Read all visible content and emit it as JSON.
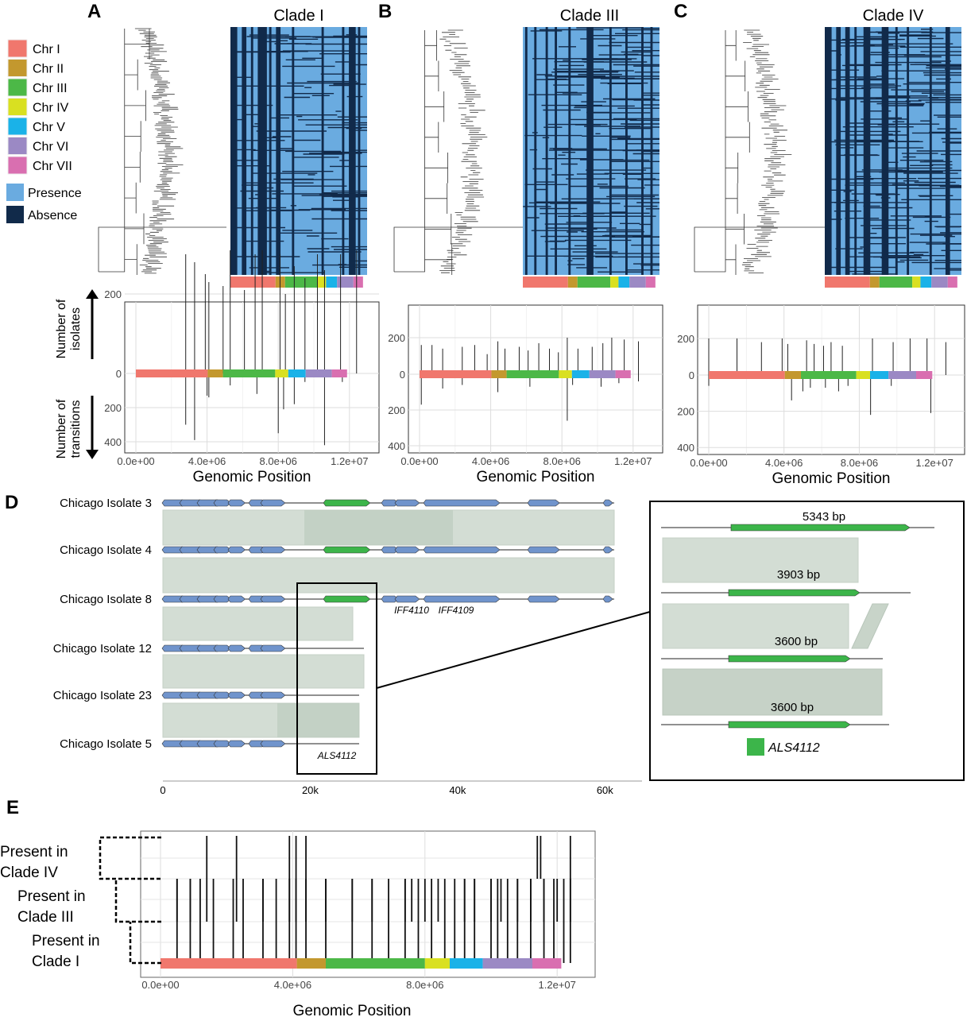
{
  "panel_letters": {
    "a": "A",
    "b": "B",
    "c": "C",
    "d": "D",
    "e": "E"
  },
  "legend": {
    "chromosomes": [
      {
        "label": "Chr I",
        "color": "#f0776d"
      },
      {
        "label": "Chr II",
        "color": "#c3982e"
      },
      {
        "label": "Chr III",
        "color": "#4cb847"
      },
      {
        "label": "Chr IV",
        "color": "#d9e021"
      },
      {
        "label": "Chr V",
        "color": "#1ab2e8"
      },
      {
        "label": "Chr VI",
        "color": "#9b89c4"
      },
      {
        "label": "Chr VII",
        "color": "#d96fb0"
      }
    ],
    "presence": {
      "label": "Presence",
      "color": "#6aabe0"
    },
    "absence": {
      "label": "Absence",
      "color": "#112a4a"
    }
  },
  "heatmaps": [
    {
      "title": "Clade I"
    },
    {
      "title": "Clade III"
    },
    {
      "title": "Clade IV"
    }
  ],
  "side_labels": {
    "isolates": "Number of isolates",
    "transitions": "Number of transitions"
  },
  "chart_data": [
    {
      "type": "bar",
      "panel": "A",
      "xlabel": "Genomic Position",
      "xlim": [
        0,
        12500000
      ],
      "xticks": [
        "0.0e+00",
        "4.0e+06",
        "8.0e+06",
        "1.2e+07"
      ],
      "yticks_up": [
        "200",
        "0"
      ],
      "yticks_down": [
        "200",
        "400"
      ],
      "ylim": [
        -400,
        330
      ],
      "up": [
        [
          2800000,
          300
        ],
        [
          3300000,
          280
        ],
        [
          3900000,
          250
        ],
        [
          4100000,
          230
        ],
        [
          4900000,
          220
        ],
        [
          5300000,
          310
        ],
        [
          6100000,
          210
        ],
        [
          6700000,
          300
        ],
        [
          7100000,
          310
        ],
        [
          8100000,
          300
        ],
        [
          8400000,
          200
        ],
        [
          8900000,
          270
        ],
        [
          9500000,
          240
        ],
        [
          10200000,
          300
        ],
        [
          10600000,
          260
        ],
        [
          11500000,
          300
        ],
        [
          12400000,
          310
        ]
      ],
      "down": [
        [
          2800000,
          300
        ],
        [
          3300000,
          390
        ],
        [
          4000000,
          130
        ],
        [
          4100000,
          140
        ],
        [
          5300000,
          70
        ],
        [
          6800000,
          120
        ],
        [
          8000000,
          350
        ],
        [
          8300000,
          210
        ],
        [
          8900000,
          180
        ],
        [
          9500000,
          50
        ],
        [
          10600000,
          420
        ],
        [
          11600000,
          50
        ]
      ]
    },
    {
      "type": "bar",
      "panel": "B",
      "xlabel": "Genomic Position",
      "xlim": [
        0,
        12500000
      ],
      "xticks": [
        "0.0e+00",
        "4.0e+06",
        "8.0e+06",
        "1.2e+07"
      ],
      "yticks_up": [
        "200",
        "0"
      ],
      "yticks_down": [
        "200",
        "400"
      ],
      "ylim": [
        -400,
        330
      ],
      "up": [
        [
          100000,
          160
        ],
        [
          700000,
          160
        ],
        [
          1300000,
          140
        ],
        [
          2400000,
          150
        ],
        [
          3100000,
          160
        ],
        [
          3800000,
          110
        ],
        [
          4400000,
          180
        ],
        [
          4800000,
          140
        ],
        [
          5600000,
          150
        ],
        [
          6100000,
          130
        ],
        [
          6700000,
          170
        ],
        [
          7300000,
          140
        ],
        [
          7800000,
          120
        ],
        [
          8300000,
          200
        ],
        [
          8900000,
          140
        ],
        [
          9700000,
          150
        ],
        [
          10300000,
          170
        ],
        [
          10800000,
          200
        ],
        [
          11500000,
          190
        ],
        [
          12300000,
          180
        ]
      ],
      "down": [
        [
          100000,
          170
        ],
        [
          1300000,
          80
        ],
        [
          2400000,
          60
        ],
        [
          4400000,
          100
        ],
        [
          6200000,
          70
        ],
        [
          8300000,
          260
        ],
        [
          8600000,
          60
        ],
        [
          10200000,
          70
        ],
        [
          11200000,
          50
        ],
        [
          12300000,
          40
        ]
      ]
    },
    {
      "type": "bar",
      "panel": "C",
      "xlabel": "Genomic Position",
      "xlim": [
        0,
        12500000
      ],
      "xticks": [
        "0.0e+00",
        "4.0e+06",
        "8.0e+06",
        "1.2e+07"
      ],
      "yticks_up": [
        "200",
        "0"
      ],
      "yticks_down": [
        "200",
        "400"
      ],
      "ylim": [
        -400,
        330
      ],
      "up": [
        [
          0,
          200
        ],
        [
          1500000,
          200
        ],
        [
          2800000,
          180
        ],
        [
          3900000,
          200
        ],
        [
          4200000,
          170
        ],
        [
          5200000,
          190
        ],
        [
          5600000,
          170
        ],
        [
          6100000,
          160
        ],
        [
          6500000,
          180
        ],
        [
          7100000,
          160
        ],
        [
          8700000,
          200
        ],
        [
          9800000,
          180
        ],
        [
          10700000,
          200
        ],
        [
          11600000,
          200
        ],
        [
          12600000,
          180
        ]
      ],
      "down": [
        [
          0,
          60
        ],
        [
          4400000,
          140
        ],
        [
          5000000,
          90
        ],
        [
          5400000,
          70
        ],
        [
          6200000,
          70
        ],
        [
          6900000,
          90
        ],
        [
          7400000,
          60
        ],
        [
          8600000,
          220
        ],
        [
          9700000,
          60
        ],
        [
          11800000,
          210
        ]
      ]
    },
    {
      "type": "bar",
      "panel": "E",
      "xlabel": "Genomic Position",
      "xlim": [
        0,
        12500000
      ],
      "xticks": [
        "0.0e+00",
        "4.0e+06",
        "8.0e+06",
        "1.2e+07"
      ],
      "categories": [
        "Present in Clade I",
        "Present in Clade III",
        "Present in Clade IV"
      ],
      "tracks": [
        {
          "name": "Present in Clade I",
          "x": [
            500000,
            900000,
            1200000,
            1600000,
            2200000,
            2500000,
            3100000,
            3500000,
            3900000,
            4100000,
            4400000,
            5000000,
            5800000,
            6400000,
            6900000,
            7400000,
            7800000,
            8200000,
            8600000,
            8900000,
            9200000,
            9500000,
            10000000,
            10200000,
            10500000,
            10800000,
            11200000,
            11600000,
            11900000,
            12200000,
            12400000
          ]
        },
        {
          "name": "Present in Clade III",
          "x": [
            500000,
            900000,
            1400000,
            2300000,
            3100000,
            3900000,
            4100000,
            4400000,
            5000000,
            5800000,
            6400000,
            7400000,
            7600000,
            8000000,
            8400000,
            9200000,
            9500000,
            10000000,
            10300000,
            10800000,
            11200000,
            11600000,
            12000000,
            12400000
          ]
        },
        {
          "name": "Present in Clade IV",
          "x": [
            1400000,
            2300000,
            3900000,
            4100000,
            4400000,
            11400000,
            11500000,
            12400000
          ]
        }
      ]
    }
  ],
  "synteny": {
    "isolates": [
      "Chicago Isolate 3",
      "Chicago Isolate 4",
      "Chicago Isolate 8",
      "Chicago Isolate 12",
      "Chicago Isolate 23",
      "Chicago Isolate 5"
    ],
    "gene_labels": [
      "IFF4110",
      "IFF4109",
      "ALS4112"
    ],
    "axis_ticks": [
      "0",
      "20k",
      "40k",
      "60k"
    ],
    "inset_sizes": [
      "5343 bp",
      "3903 bp",
      "3600 bp",
      "3600 bp"
    ],
    "inset_legend": "ALS4112"
  }
}
